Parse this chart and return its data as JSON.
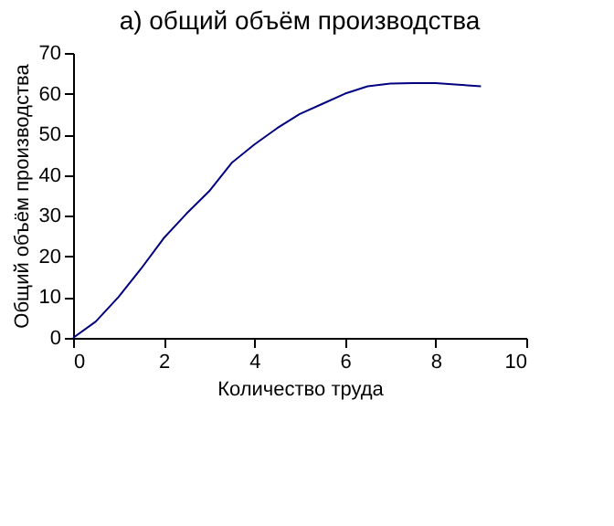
{
  "chart_data": {
    "type": "line",
    "title": "а) общий объём производства",
    "xlabel": "Количество труда",
    "ylabel": "Общий объём производства",
    "x": [
      0,
      0.5,
      1,
      1.5,
      2,
      2.5,
      3,
      3.5,
      4,
      4.5,
      5,
      5.5,
      6,
      6.5,
      7,
      7.5,
      8,
      8.5,
      9
    ],
    "series": [
      {
        "color": "#000080",
        "values": [
          0,
          4,
          10,
          17,
          24.5,
          30.5,
          36,
          43,
          47.5,
          51.5,
          55,
          57.5,
          60,
          61.8,
          62.5,
          62.6,
          62.6,
          62.2,
          61.8
        ]
      }
    ],
    "xlim": [
      0,
      10
    ],
    "xticks": [
      0,
      2,
      4,
      6,
      8,
      10
    ],
    "ylim": [
      0,
      70
    ],
    "yticks": [
      0,
      10,
      20,
      30,
      40,
      50,
      60,
      70
    ],
    "grid": false,
    "legend": false
  }
}
